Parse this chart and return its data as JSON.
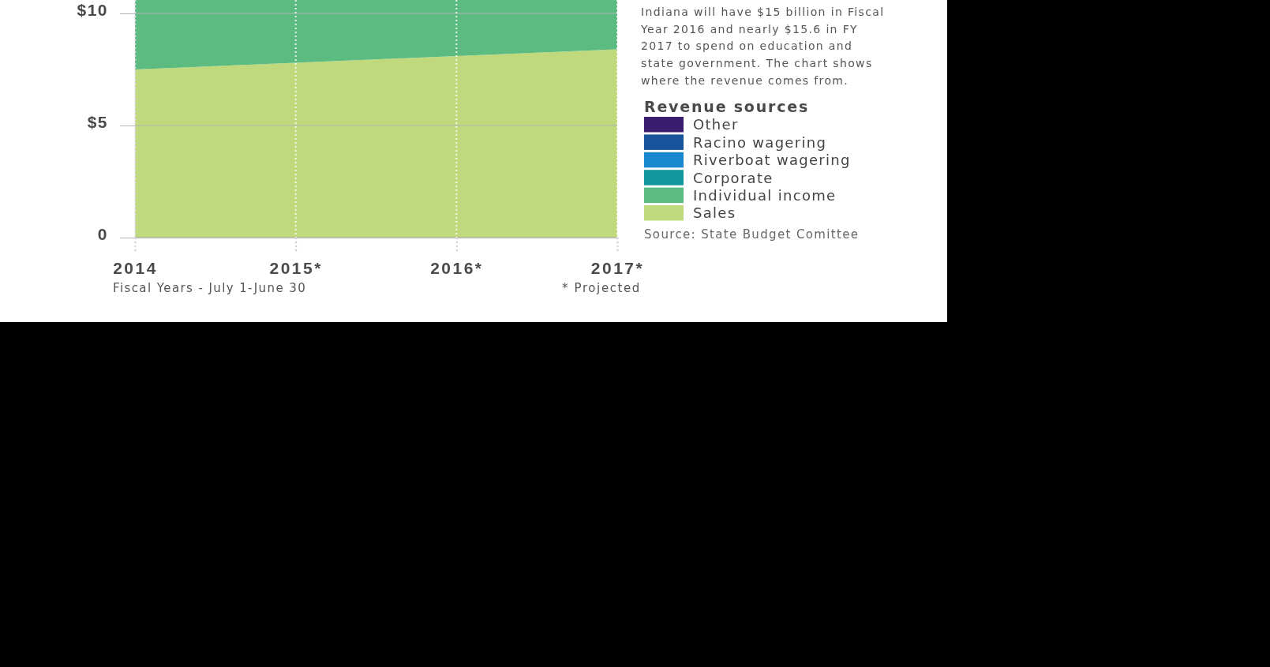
{
  "chart_data": {
    "type": "area",
    "stacked": true,
    "xlabel": "Fiscal Years - July 1-June 30",
    "legend_title": "Revenue sources",
    "annotations": [
      "Indiana will have $15 billion in Fiscal Year 2016 and nearly $15.6 in FY 2017 to spend on education and state government. The chart shows where the revenue comes from.",
      "Source: State Budget Comittee",
      "* Projected"
    ],
    "categories": [
      "2014",
      "2015*",
      "2016*",
      "2017*"
    ],
    "series": [
      {
        "name": "Sales",
        "color": "#bfd97c",
        "values": [
          7.5,
          7.8,
          8.1,
          8.4
        ]
      },
      {
        "name": "Individual income",
        "color": "#5cbb80",
        "values": [
          3.1,
          2.8,
          2.5,
          2.2
        ]
      },
      {
        "name": "Corporate",
        "color": "#12979f",
        "values": [
          null,
          null,
          null,
          null
        ]
      },
      {
        "name": "Riverboat wagering",
        "color": "#1a88cf",
        "values": [
          null,
          null,
          null,
          null
        ]
      },
      {
        "name": "Racino wagering",
        "color": "#17529b",
        "values": [
          null,
          null,
          null,
          null
        ]
      },
      {
        "name": "Other",
        "color": "#3a1c6e",
        "values": [
          null,
          null,
          null,
          null
        ]
      }
    ],
    "ylim": [
      0,
      10.6
    ],
    "yticks": [
      0,
      {
        "value": 5,
        "label": "$5"
      },
      {
        "value": 10,
        "label": "$10"
      }
    ],
    "grid": true,
    "legend": "right"
  }
}
